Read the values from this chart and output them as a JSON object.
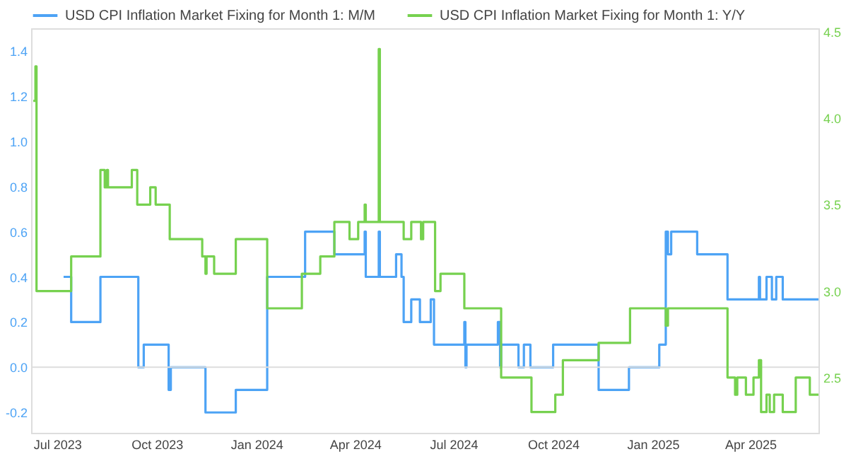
{
  "chart_data": {
    "type": "step",
    "legend": "top",
    "xlim": [
      "2023-06-07",
      "2025-06-03"
    ],
    "xticks": [
      {
        "value": "2023-07-01",
        "label": "Jul 2023"
      },
      {
        "value": "2023-10-01",
        "label": "Oct 2023"
      },
      {
        "value": "2024-01-01",
        "label": "Jan 2024"
      },
      {
        "value": "2024-04-01",
        "label": "Apr 2024"
      },
      {
        "value": "2024-07-01",
        "label": "Jul 2024"
      },
      {
        "value": "2024-10-01",
        "label": "Oct 2024"
      },
      {
        "value": "2025-01-01",
        "label": "Jan 2025"
      },
      {
        "value": "2025-04-01",
        "label": "Apr 2025"
      }
    ],
    "ylim": [
      -0.29,
      1.5
    ],
    "yticks": [
      -0.2,
      {
        "value": 0,
        "label": "0.0"
      },
      0.2,
      0.4,
      0.6,
      0.8,
      {
        "value": 1,
        "label": "1.0"
      },
      1.2,
      1.4
    ],
    "y2lim": [
      2.18,
      4.52
    ],
    "y2ticks": [
      2.5,
      {
        "value": 3,
        "label": "3.0"
      },
      3.5,
      {
        "value": 4,
        "label": "4.0"
      },
      4.5
    ],
    "ref_lines": [
      {
        "axis": "y",
        "value": 0,
        "color": "#dddddd"
      }
    ],
    "series": [
      {
        "name": "USD CPI Inflation Market Fixing for Month 1: M/M",
        "color": "#4da3f5",
        "x": [
          "2023-07-07",
          "2023-07-14",
          "2023-08-10",
          "2023-09-14",
          "2023-09-19",
          "2023-10-12",
          "2023-10-14",
          "2023-11-15",
          "2023-12-13",
          "2024-01-11",
          "2024-02-15",
          "2024-03-13",
          "2024-04-10",
          "2024-04-11",
          "2024-04-23",
          "2024-04-24",
          "2024-05-09",
          "2024-05-14",
          "2024-05-16",
          "2024-05-23",
          "2024-05-31",
          "2024-06-10",
          "2024-06-13",
          "2024-07-11",
          "2024-07-12",
          "2024-07-13",
          "2024-08-11",
          "2024-08-13",
          "2024-08-14",
          "2024-08-30",
          "2024-09-04",
          "2024-09-10",
          "2024-10-01",
          "2024-11-12",
          "2024-12-10",
          "2025-01-07",
          "2025-01-13",
          "2025-01-15",
          "2025-01-18",
          "2025-02-11",
          "2025-03-11",
          "2025-04-09",
          "2025-04-10",
          "2025-04-16",
          "2025-04-21",
          "2025-04-25",
          "2025-05-01",
          "2025-06-03"
        ],
        "values": [
          0.4,
          0.2,
          0.4,
          0.0,
          0.1,
          -0.1,
          0.0,
          -0.2,
          -0.1,
          0.4,
          0.6,
          0.5,
          0.6,
          0.4,
          0.6,
          0.4,
          0.5,
          0.4,
          0.2,
          0.3,
          0.2,
          0.3,
          0.1,
          0.2,
          0.0,
          0.1,
          0.2,
          0.0,
          0.1,
          0.0,
          0.1,
          0.0,
          0.1,
          -0.1,
          0.0,
          0.1,
          0.6,
          0.5,
          0.6,
          0.5,
          0.3,
          0.4,
          0.3,
          0.4,
          0.3,
          0.4,
          0.3,
          0.3
        ]
      },
      {
        "name": "USD CPI Inflation Market Fixing for Month 1: Y/Y",
        "color": "#76d14f",
        "axis": "y2",
        "x": [
          "2023-06-09",
          "2023-06-11",
          "2023-06-12",
          "2023-07-14",
          "2023-08-10",
          "2023-08-14",
          "2023-08-16",
          "2023-08-17",
          "2023-09-08",
          "2023-09-13",
          "2023-09-25",
          "2023-09-30",
          "2023-10-13",
          "2023-11-12",
          "2023-11-15",
          "2023-11-16",
          "2023-11-23",
          "2023-12-13",
          "2024-01-11",
          "2024-02-12",
          "2024-02-29",
          "2024-03-13",
          "2024-03-27",
          "2024-04-04",
          "2024-04-10",
          "2024-04-11",
          "2024-04-23",
          "2024-04-24",
          "2024-05-16",
          "2024-05-23",
          "2024-06-01",
          "2024-06-03",
          "2024-06-14",
          "2024-06-19",
          "2024-07-11",
          "2024-08-14",
          "2024-09-11",
          "2024-10-03",
          "2024-10-10",
          "2024-11-12",
          "2024-12-11",
          "2025-01-13",
          "2025-01-15",
          "2025-03-11",
          "2025-03-18",
          "2025-03-20",
          "2025-03-28",
          "2025-04-04",
          "2025-04-09",
          "2025-04-11",
          "2025-04-16",
          "2025-04-19",
          "2025-04-23",
          "2025-05-01",
          "2025-05-13",
          "2025-05-26",
          "2025-06-03"
        ],
        "values": [
          4.1,
          4.3,
          3.0,
          3.2,
          3.7,
          3.6,
          3.7,
          3.6,
          3.7,
          3.5,
          3.6,
          3.5,
          3.3,
          3.2,
          3.1,
          3.2,
          3.1,
          3.3,
          2.9,
          3.1,
          3.2,
          3.4,
          3.3,
          3.4,
          3.5,
          3.4,
          4.4,
          3.4,
          3.3,
          3.4,
          3.3,
          3.4,
          3.0,
          3.1,
          2.9,
          2.5,
          2.3,
          2.4,
          2.6,
          2.7,
          2.9,
          2.8,
          2.9,
          2.5,
          2.4,
          2.5,
          2.4,
          2.5,
          2.6,
          2.3,
          2.4,
          2.3,
          2.4,
          2.3,
          2.5,
          2.4,
          2.4
        ]
      }
    ]
  }
}
